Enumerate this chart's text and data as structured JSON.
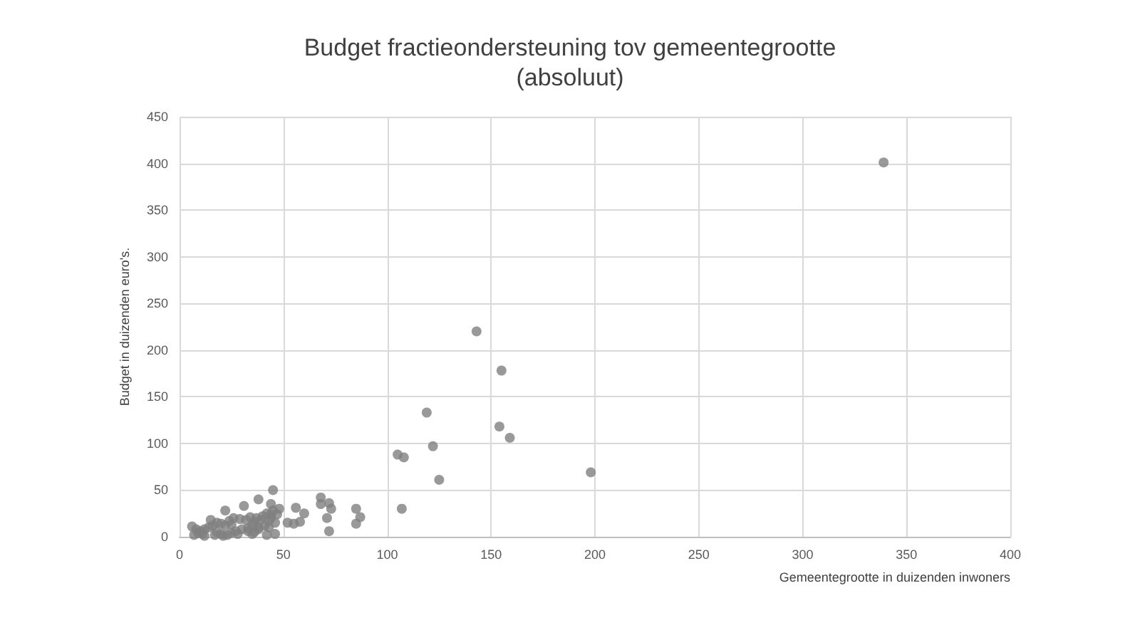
{
  "chart_data": {
    "type": "scatter",
    "title": "Budget fractieondersteuning tov gemeentegrootte",
    "subtitle": "(absoluut)",
    "xlabel": "Gemeentegrootte in duizenden inwoners",
    "ylabel": "Budget in duizenden euro's.",
    "xlim": [
      0,
      400
    ],
    "ylim": [
      0,
      450
    ],
    "xticks": [
      0,
      50,
      100,
      150,
      200,
      250,
      300,
      350,
      400
    ],
    "yticks": [
      0,
      50,
      100,
      150,
      200,
      250,
      300,
      350,
      400,
      450
    ],
    "grid": true,
    "marker": "circle",
    "series": [
      {
        "color": "#808080",
        "x": [
          339,
          143,
          155,
          119,
          154,
          159,
          122,
          105,
          108,
          125,
          198,
          107,
          85,
          87,
          85,
          72,
          73,
          71,
          72,
          68,
          68,
          60,
          56,
          58,
          55,
          52,
          48,
          45,
          44,
          38,
          31,
          22,
          44,
          46,
          42,
          35,
          6,
          8,
          7,
          9,
          10,
          11,
          12,
          14,
          15,
          16,
          18,
          18,
          20,
          20,
          22,
          23,
          24,
          25,
          26,
          27,
          29,
          30,
          32,
          33,
          34,
          35,
          36,
          37,
          38,
          39,
          40,
          41,
          42,
          43,
          44,
          45,
          46,
          47,
          12,
          17,
          25,
          33,
          38,
          21,
          28,
          36,
          43
        ],
        "values": [
          401,
          220,
          178,
          133,
          118,
          106,
          97,
          88,
          85,
          61,
          69,
          30,
          30,
          21,
          14,
          36,
          30,
          20,
          6,
          42,
          35,
          25,
          31,
          16,
          14,
          15,
          30,
          50,
          35,
          40,
          33,
          28,
          24,
          3,
          2,
          3,
          11,
          8,
          2,
          4,
          6,
          3,
          8,
          10,
          18,
          12,
          15,
          5,
          14,
          3,
          12,
          2,
          17,
          13,
          20,
          6,
          19,
          8,
          18,
          9,
          21,
          12,
          16,
          20,
          10,
          18,
          22,
          12,
          25,
          17,
          20,
          28,
          15,
          24,
          1,
          2,
          4,
          6,
          8,
          1,
          3,
          5,
          10
        ]
      }
    ]
  }
}
